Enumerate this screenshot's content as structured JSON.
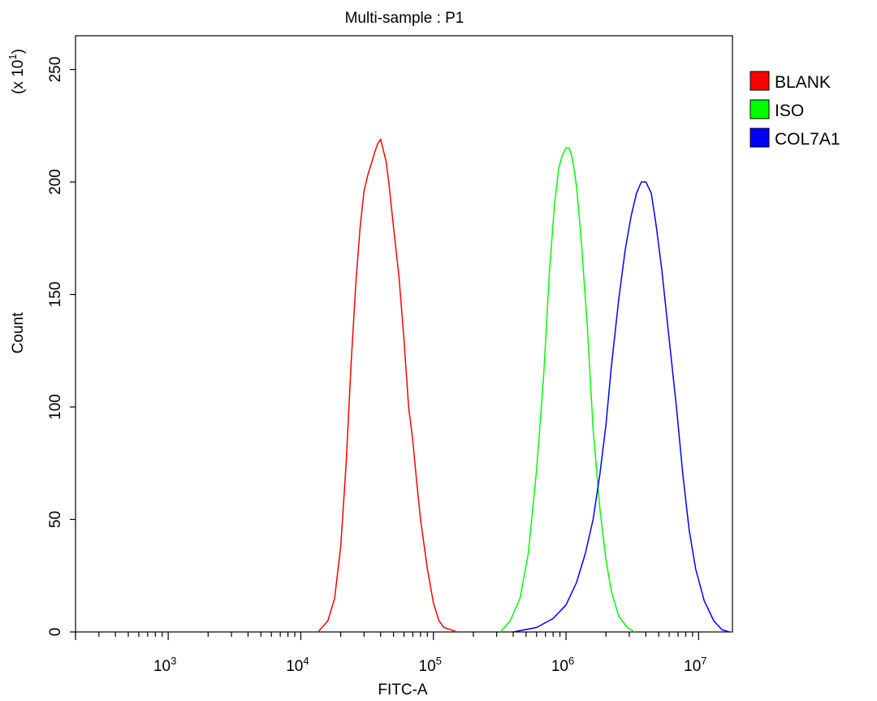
{
  "chart_data": {
    "type": "line",
    "title": "Multi-sample : P1",
    "xlabel": "FITC-A",
    "ylabel": "Count",
    "y_scale_note": "(x 10",
    "y_scale_exp": "1",
    "y_scale_close": ")",
    "x_scale": "log",
    "xlim": [
      200,
      18000000
    ],
    "ylim": [
      0,
      265
    ],
    "x_ticks": [
      {
        "value": 1000,
        "base": "10",
        "exp": "3"
      },
      {
        "value": 10000,
        "base": "10",
        "exp": "4"
      },
      {
        "value": 100000,
        "base": "10",
        "exp": "5"
      },
      {
        "value": 1000000,
        "base": "10",
        "exp": "6"
      },
      {
        "value": 10000000,
        "base": "10",
        "exp": "7"
      }
    ],
    "y_ticks": [
      "0",
      "50",
      "100",
      "150",
      "200",
      "250"
    ],
    "y_tick_values": [
      0,
      50,
      100,
      150,
      200,
      250
    ],
    "legend_position": "right",
    "grid": false,
    "series": [
      {
        "name": "BLANK",
        "color": "#ff0000",
        "x": [
          13500,
          16000,
          18000,
          20000,
          22000,
          24000,
          26000,
          28000,
          30000,
          32000,
          34000,
          36000,
          38000,
          40000,
          42000,
          44000,
          46000,
          48000,
          50000,
          55000,
          60000,
          65000,
          70000,
          75000,
          80000,
          90000,
          100000,
          110000,
          120000,
          135000,
          150000
        ],
        "y": [
          0,
          5,
          15,
          38,
          75,
          120,
          155,
          180,
          196,
          203,
          208,
          213,
          217,
          219,
          214,
          209,
          200,
          190,
          180,
          158,
          130,
          100,
          85,
          66,
          50,
          28,
          13,
          5,
          2,
          1,
          0
        ]
      },
      {
        "name": "ISO",
        "color": "#00ff00",
        "x": [
          320000,
          380000,
          450000,
          520000,
          600000,
          680000,
          750000,
          820000,
          880000,
          940000,
          1000000,
          1060000,
          1120000,
          1200000,
          1300000,
          1450000,
          1600000,
          1800000,
          2000000,
          2200000,
          2500000,
          2900000,
          3300000
        ],
        "y": [
          0,
          5,
          15,
          35,
          72,
          115,
          160,
          190,
          206,
          212,
          215,
          215,
          210,
          198,
          175,
          135,
          90,
          55,
          32,
          18,
          7,
          2,
          0
        ]
      },
      {
        "name": "COL7A1",
        "color": "#0000ff",
        "x": [
          400000,
          600000,
          800000,
          1000000,
          1200000,
          1400000,
          1600000,
          1800000,
          2000000,
          2200000,
          2500000,
          2800000,
          3100000,
          3400000,
          3700000,
          4000000,
          4400000,
          4800000,
          5300000,
          6000000,
          6800000,
          7600000,
          8500000,
          9500000,
          11000000,
          13000000,
          15000000,
          17000000
        ],
        "y": [
          0,
          2,
          6,
          12,
          22,
          35,
          50,
          70,
          92,
          118,
          148,
          170,
          185,
          195,
          200,
          200,
          195,
          180,
          160,
          130,
          100,
          70,
          45,
          28,
          14,
          5,
          1,
          0
        ]
      }
    ]
  }
}
